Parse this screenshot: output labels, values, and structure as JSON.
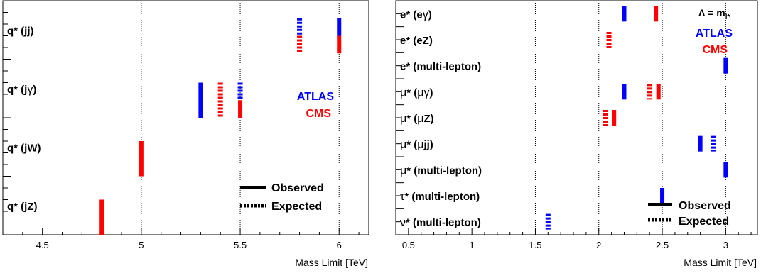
{
  "colors": {
    "ATLAS": "#0000ff",
    "CMS": "#ff0000",
    "frame": "#000000",
    "grid": "#000000"
  },
  "legend": {
    "observed": "Observed",
    "expected": "Expected"
  },
  "chart_data": [
    {
      "type": "bar",
      "xlabel": "Mass Limit [TeV]",
      "xlim": [
        4.3,
        6.15
      ],
      "xticks": [
        4.5,
        5,
        5.5,
        6
      ],
      "xtick_labels": [
        "4.5",
        "5",
        "5.5",
        "6"
      ],
      "grid_x": [
        5.0,
        5.5,
        6.0
      ],
      "ylim": [
        0,
        4
      ],
      "categories": [
        {
          "label": "q* (jj)",
          "parts": [
            {
              "t": "q* (jj)"
            }
          ]
        },
        {
          "label": "q* (jγ)",
          "parts": [
            {
              "t": "q* (j"
            },
            {
              "t": "γ",
              "g": true
            },
            {
              "t": ")"
            }
          ]
        },
        {
          "label": "q* (jW)",
          "parts": [
            {
              "t": "q* (jW)"
            }
          ]
        },
        {
          "label": "q* (jZ)",
          "parts": [
            {
              "t": "q* (jZ)"
            }
          ]
        }
      ],
      "experiment_labels": [
        "ATLAS",
        "CMS"
      ],
      "legend_visible": true,
      "extra_text": "",
      "limits": [
        {
          "cat": 0,
          "exp": "ATLAS",
          "kind": "observed",
          "value": 6.0,
          "y0": 3.7,
          "y1": 3.4
        },
        {
          "cat": 0,
          "exp": "CMS",
          "kind": "observed",
          "value": 6.0,
          "y0": 3.4,
          "y1": 3.1
        },
        {
          "cat": 0,
          "exp": "ATLAS",
          "kind": "expected",
          "value": 5.8,
          "y0": 3.7,
          "y1": 3.4
        },
        {
          "cat": 0,
          "exp": "CMS",
          "kind": "expected",
          "value": 5.8,
          "y0": 3.4,
          "y1": 3.1
        },
        {
          "cat": 1,
          "exp": "ATLAS",
          "kind": "observed",
          "value": 5.3,
          "y0": 2.6,
          "y1": 2.0
        },
        {
          "cat": 1,
          "exp": "CMS",
          "kind": "expected",
          "value": 5.4,
          "y0": 2.6,
          "y1": 2.0
        },
        {
          "cat": 1,
          "exp": "ATLAS",
          "kind": "expected",
          "value": 5.5,
          "y0": 2.6,
          "y1": 2.3
        },
        {
          "cat": 1,
          "exp": "CMS",
          "kind": "observed",
          "value": 5.5,
          "y0": 2.3,
          "y1": 2.0
        },
        {
          "cat": 2,
          "exp": "CMS",
          "kind": "observed",
          "value": 5.0,
          "y0": 1.6,
          "y1": 1.0
        },
        {
          "cat": 3,
          "exp": "CMS",
          "kind": "observed",
          "value": 4.8,
          "y0": 0.6,
          "y1": 0.0
        }
      ]
    },
    {
      "type": "bar",
      "xlabel": "Mass Limit [TeV]",
      "xlim": [
        0.4,
        3.25
      ],
      "xticks": [
        0.5,
        1,
        1.5,
        2,
        2.5,
        3
      ],
      "xtick_labels": [
        "0.5",
        "1",
        "1.5",
        "2",
        "2.5",
        "3"
      ],
      "grid_x": [
        1.5,
        2.0,
        2.5,
        3.0
      ],
      "ylim": [
        0,
        9
      ],
      "categories": [
        {
          "label": "e* (eγ)",
          "parts": [
            {
              "t": "e* (e"
            },
            {
              "t": "γ",
              "g": true
            },
            {
              "t": ")"
            }
          ]
        },
        {
          "label": "e* (eZ)",
          "parts": [
            {
              "t": "e* (eZ)"
            }
          ]
        },
        {
          "label": "e* (multi-lepton)",
          "parts": [
            {
              "t": "e* (multi-lepton)"
            }
          ]
        },
        {
          "label": "μ* (μγ)",
          "parts": [
            {
              "t": "μ",
              "g": true
            },
            {
              "t": "* ("
            },
            {
              "t": "μγ",
              "g": true
            },
            {
              "t": ")"
            }
          ]
        },
        {
          "label": "μ* (μZ)",
          "parts": [
            {
              "t": "μ",
              "g": true
            },
            {
              "t": "* ("
            },
            {
              "t": "μ",
              "g": true
            },
            {
              "t": "Z)"
            }
          ]
        },
        {
          "label": "μ* (μjj)",
          "parts": [
            {
              "t": "μ",
              "g": true
            },
            {
              "t": "* ("
            },
            {
              "t": "μ",
              "g": true
            },
            {
              "t": "jj)"
            }
          ]
        },
        {
          "label": "μ* (multi-lepton)",
          "parts": [
            {
              "t": "μ",
              "g": true
            },
            {
              "t": "* (multi-lepton)"
            }
          ]
        },
        {
          "label": "τ* (multi-lepton)",
          "parts": [
            {
              "t": "τ",
              "g": true
            },
            {
              "t": "* (multi-lepton)"
            }
          ]
        },
        {
          "label": "ν* (multi-lepton)",
          "parts": [
            {
              "t": "ν",
              "g": true
            },
            {
              "t": "* (multi-lepton)"
            }
          ]
        }
      ],
      "experiment_labels": [
        "ATLAS",
        "CMS"
      ],
      "legend_visible": true,
      "extra_text": "Λ = m",
      "extra_text_sub": "l*",
      "limits": [
        {
          "cat": 0,
          "exp": "ATLAS",
          "kind": "observed",
          "value": 2.2,
          "y0": 8.8,
          "y1": 8.2
        },
        {
          "cat": 0,
          "exp": "CMS",
          "kind": "observed",
          "value": 2.45,
          "y0": 8.8,
          "y1": 8.2
        },
        {
          "cat": 1,
          "exp": "CMS",
          "kind": "expected",
          "value": 2.08,
          "y0": 7.8,
          "y1": 7.2
        },
        {
          "cat": 2,
          "exp": "ATLAS",
          "kind": "observed",
          "value": 3.0,
          "y0": 6.8,
          "y1": 6.2
        },
        {
          "cat": 3,
          "exp": "ATLAS",
          "kind": "observed",
          "value": 2.2,
          "y0": 5.8,
          "y1": 5.2
        },
        {
          "cat": 3,
          "exp": "CMS",
          "kind": "expected",
          "value": 2.4,
          "y0": 5.8,
          "y1": 5.2
        },
        {
          "cat": 3,
          "exp": "CMS",
          "kind": "observed",
          "value": 2.47,
          "y0": 5.8,
          "y1": 5.2
        },
        {
          "cat": 4,
          "exp": "CMS",
          "kind": "expected",
          "value": 2.05,
          "y0": 4.8,
          "y1": 4.2
        },
        {
          "cat": 4,
          "exp": "CMS",
          "kind": "observed",
          "value": 2.12,
          "y0": 4.8,
          "y1": 4.2
        },
        {
          "cat": 5,
          "exp": "ATLAS",
          "kind": "observed",
          "value": 2.8,
          "y0": 3.8,
          "y1": 3.2
        },
        {
          "cat": 5,
          "exp": "ATLAS",
          "kind": "expected",
          "value": 2.9,
          "y0": 3.8,
          "y1": 3.2
        },
        {
          "cat": 6,
          "exp": "ATLAS",
          "kind": "observed",
          "value": 3.0,
          "y0": 2.8,
          "y1": 2.2
        },
        {
          "cat": 7,
          "exp": "ATLAS",
          "kind": "observed",
          "value": 2.5,
          "y0": 1.8,
          "y1": 1.2
        },
        {
          "cat": 8,
          "exp": "ATLAS",
          "kind": "expected",
          "value": 1.6,
          "y0": 0.8,
          "y1": 0.2
        }
      ]
    }
  ]
}
